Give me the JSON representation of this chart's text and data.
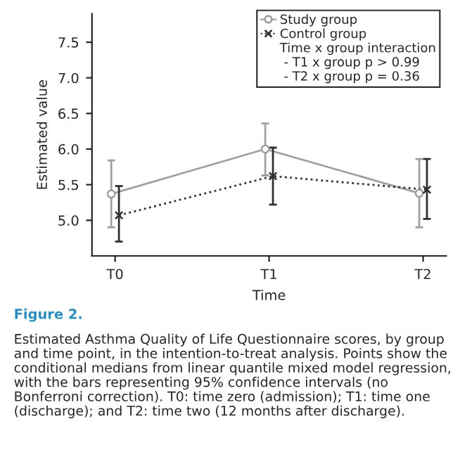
{
  "chart_data": {
    "type": "line",
    "xlabel": "Time",
    "ylabel": "Estimated value",
    "categories": [
      "T0",
      "T1",
      "T2"
    ],
    "series": [
      {
        "name": "Study group",
        "color": "#a0a0a0",
        "marker": "circle",
        "line_style": "solid",
        "values": [
          5.37,
          6.0,
          5.38
        ],
        "errors": [
          [
            4.9,
            5.84
          ],
          [
            5.63,
            6.36
          ],
          [
            4.9,
            5.86
          ]
        ]
      },
      {
        "name": "Control group",
        "color": "#303030",
        "marker": "cross",
        "line_style": "dotted",
        "values": [
          5.07,
          5.62,
          5.43
        ],
        "errors": [
          [
            4.7,
            5.48
          ],
          [
            5.22,
            6.02
          ],
          [
            5.02,
            5.86
          ]
        ]
      }
    ],
    "ylim": [
      4.5,
      7.9
    ],
    "yticks": [
      {
        "value": 5,
        "label": "5.0"
      },
      5.5,
      {
        "value": 6,
        "label": "6.0"
      },
      6.5,
      {
        "value": 7,
        "label": "7.0"
      },
      7.5
    ],
    "grid": false,
    "legend": "top right",
    "annotations": [
      "Time x group interaction",
      " - T1 x group p > 0.99",
      " - T2 x group p = 0.36",
      "Figure 2.",
      "Estimated Asthma Quality of Life Questionnaire scores, by group and time point, in the intention-to-treat analysis. Points show the conditional medians from linear quantile mixed model regression, with the bars representing 95% confidence intervals (no Bonferroni correction). T0: time zero (admission); T1: time one (discharge); and T2: time two (12 months after discharge)."
    ]
  }
}
